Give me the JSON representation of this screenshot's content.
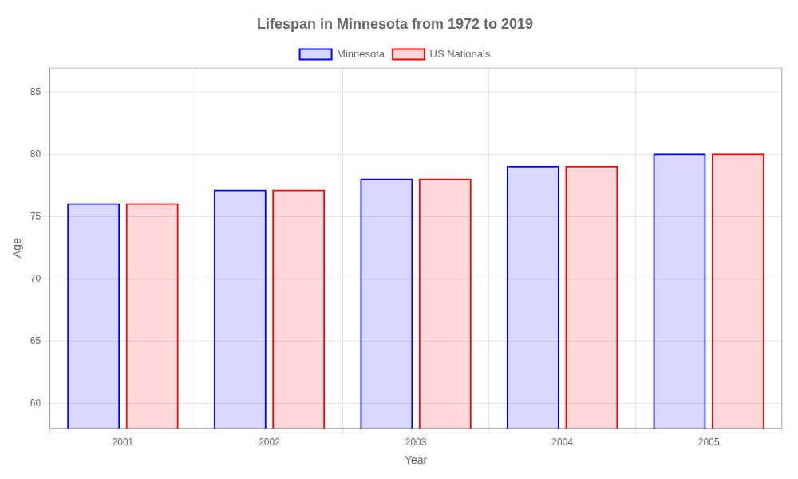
{
  "chart_data": {
    "type": "bar",
    "title": "Lifespan in Minnesota from 1972 to 2019",
    "x_label": "Year",
    "y_label": "Age",
    "categories": [
      "2001",
      "2002",
      "2003",
      "2004",
      "2005"
    ],
    "series": [
      {
        "name": "Minnesota",
        "color": "#0000ff",
        "values": [
          76.1,
          77.2,
          78.1,
          79.1,
          80.1
        ]
      },
      {
        "name": "US Nationals",
        "color": "#ff0000",
        "values": [
          76.1,
          77.2,
          78.1,
          79.1,
          80.1
        ]
      }
    ],
    "ylim": [
      58,
      87
    ],
    "yticks": [
      60,
      65,
      70,
      75,
      80,
      85
    ],
    "grid": true,
    "legend": "top"
  }
}
